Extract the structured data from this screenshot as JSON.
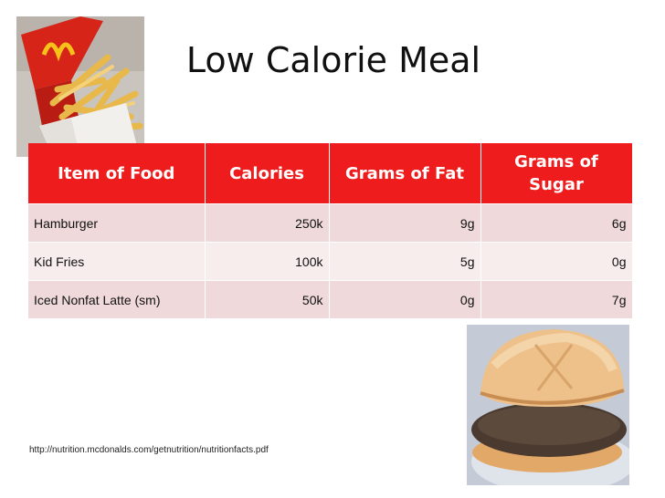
{
  "slide": {
    "title": "Low Calorie Meal",
    "source_url": "http://nutrition.mcdonalds.com/getnutrition/nutritionfacts.pdf"
  },
  "table": {
    "headers": [
      "Item of Food",
      "Calories",
      "Grams of Fat",
      "Grams of Sugar"
    ],
    "rows": [
      [
        "Hamburger",
        "250k",
        "9g",
        "6g"
      ],
      [
        "Kid Fries",
        "100k",
        "5g",
        "0g"
      ],
      [
        "Iced Nonfat Latte (sm)",
        "50k",
        "0g",
        "7g"
      ]
    ]
  },
  "images": {
    "fries_icon": "mcdonalds-fries-photo",
    "burger_icon": "hamburger-photo"
  },
  "colors": {
    "header_bg": "#ee1c1c",
    "row_dark": "#efd9da",
    "row_light": "#f8eded"
  }
}
